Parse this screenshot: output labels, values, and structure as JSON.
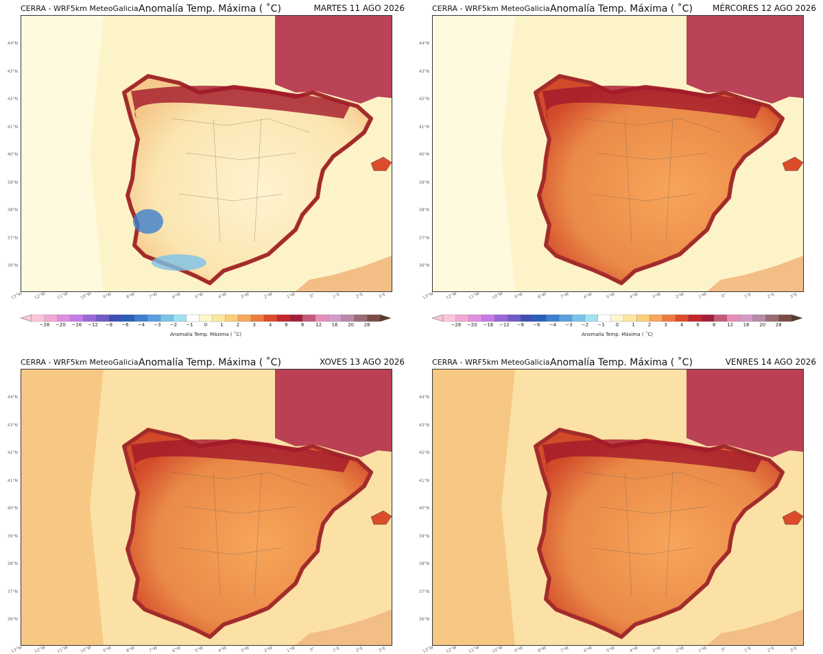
{
  "panels": [
    {
      "source": "CERRA - WRF5km MeteoGalicia",
      "title": "Anomalía Temp. Máxima ( ˚C)",
      "date": "MARTES 11 AGO 2026",
      "intensity": 0.55
    },
    {
      "source": "CERRA - WRF5km MeteoGalicia",
      "title": "Anomalía Temp. Máxima ( ˚C)",
      "date": "MÉRCORES 12 AGO 2026",
      "intensity": 0.75
    },
    {
      "source": "CERRA - WRF5km MeteoGalicia",
      "title": "Anomalía Temp. Máxima ( ˚C)",
      "date": "XOVES 13 AGO 2026",
      "intensity": 0.9
    },
    {
      "source": "CERRA - WRF5km MeteoGalicia",
      "title": "Anomalía Temp. Máxima ( ˚C)",
      "date": "VENRES 14 AGO 2026",
      "intensity": 0.95
    }
  ],
  "lat_labels": [
    "44°N",
    "43°N",
    "42°N",
    "41°N",
    "40°N",
    "39°N",
    "38°N",
    "37°N",
    "36°N"
  ],
  "lon_labels": [
    "13°W",
    "12°W",
    "11°W",
    "10°W",
    "9°W",
    "8°W",
    "7°W",
    "6°W",
    "5°W",
    "4°W",
    "3°W",
    "2°W",
    "1°W",
    "0°",
    "1°E",
    "2°E",
    "3°E"
  ],
  "colorbar": {
    "ticks": [
      "−28",
      "−20",
      "−16",
      "−12",
      "−8",
      "−6",
      "−4",
      "−3",
      "−2",
      "−1",
      "0",
      "1",
      "2",
      "3",
      "4",
      "6",
      "8",
      "12",
      "16",
      "20",
      "28"
    ],
    "label": "Anomalía Temp. Máxima ( ˚C)",
    "colors": [
      "#f9c6d8",
      "#f2a9d6",
      "#e08ee0",
      "#c57be6",
      "#9a67d9",
      "#6f5bc9",
      "#3b4fb5",
      "#2a5fb8",
      "#3c80cf",
      "#5aa0de",
      "#7cc3ea",
      "#9fe3f2",
      "#ffffff",
      "#fff7cc",
      "#fde7a0",
      "#fbcf7a",
      "#f6a75a",
      "#ed7b3d",
      "#dc4b2a",
      "#c4262a",
      "#a31e3a",
      "#c65a7a",
      "#e68fb8",
      "#d49bc6",
      "#b98aa8",
      "#9b6b73",
      "#7c4d45"
    ]
  }
}
